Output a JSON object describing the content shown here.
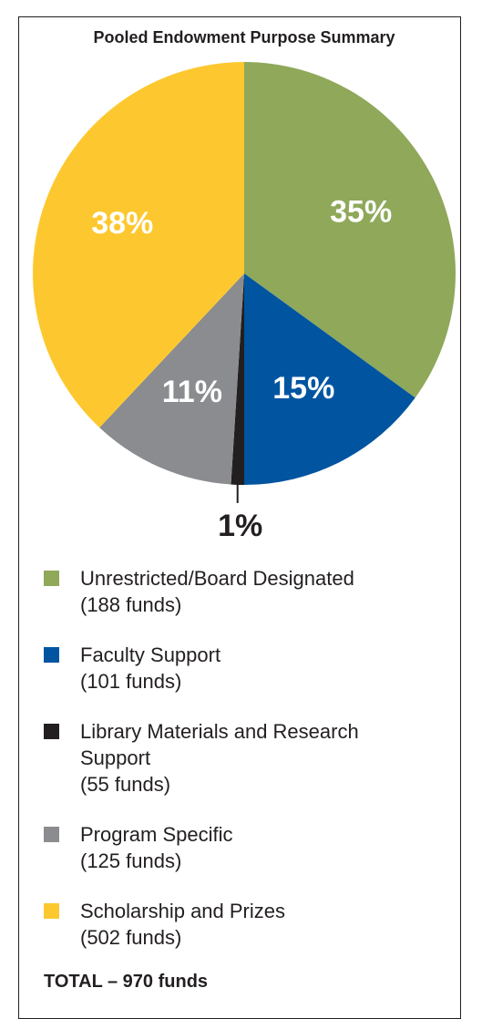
{
  "chart_data": {
    "type": "pie",
    "title": "Pooled Endowment Purpose Summary",
    "categories": [
      "Unrestricted/Board Designated",
      "Faculty Support",
      "Library Materials and Research Support",
      "Program Specific",
      "Scholarship and Prizes"
    ],
    "category_notes": [
      "(188 funds)",
      "(101 funds)",
      "(55 funds)",
      "(125 funds)",
      "(502 funds)"
    ],
    "values": [
      35,
      15,
      1,
      11,
      38
    ],
    "value_labels": [
      "35%",
      "15%",
      "1%",
      "11%",
      "38%"
    ],
    "colors": [
      "#8fa85a",
      "#0054a0",
      "#231f20",
      "#8a8c8f",
      "#fdc82f"
    ],
    "footer": "TOTAL – 970 funds"
  }
}
